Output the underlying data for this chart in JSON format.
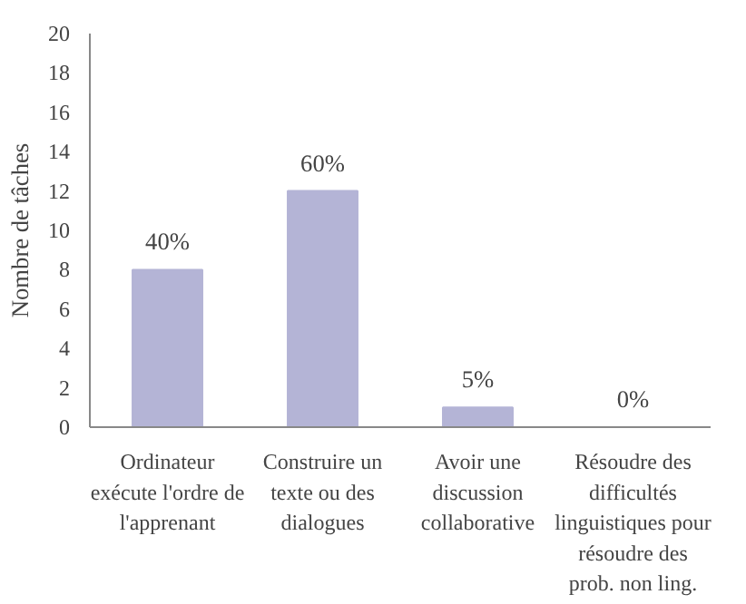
{
  "chart_data": {
    "type": "bar",
    "ylabel": "Nombre de tâches",
    "categories": [
      "Ordinateur\nexécute l'ordre de\nl'apprenant",
      "Construire un\ntexte ou des\ndialogues",
      "Avoir une\ndiscussion\ncollaborative",
      "Résoudre des\ndifficultés\nlinguistiques pour\nrésoudre des\nprob. non ling."
    ],
    "values": [
      8,
      12,
      1,
      0
    ],
    "annotations": [
      {
        "text": "40%",
        "x": "Ordinateur\nexécute l'ordre de\nl'apprenant",
        "y": 8
      },
      {
        "text": "60%",
        "x": "Construire un\ntexte ou des\ndialogues",
        "y": 12
      },
      {
        "text": "5%",
        "x": "Avoir une\ndiscussion\ncollaborative",
        "y": 1
      },
      {
        "text": "0%",
        "x": "Résoudre des\ndifficultés\nlinguistiques pour\nrésoudre des\nprob. non ling.",
        "y": 0
      }
    ],
    "color": "#b4b4d6",
    "ylim": [
      0,
      20
    ],
    "yticks": [
      0,
      2,
      4,
      6,
      8,
      10,
      12,
      14,
      16,
      18,
      20
    ],
    "grid": false
  }
}
